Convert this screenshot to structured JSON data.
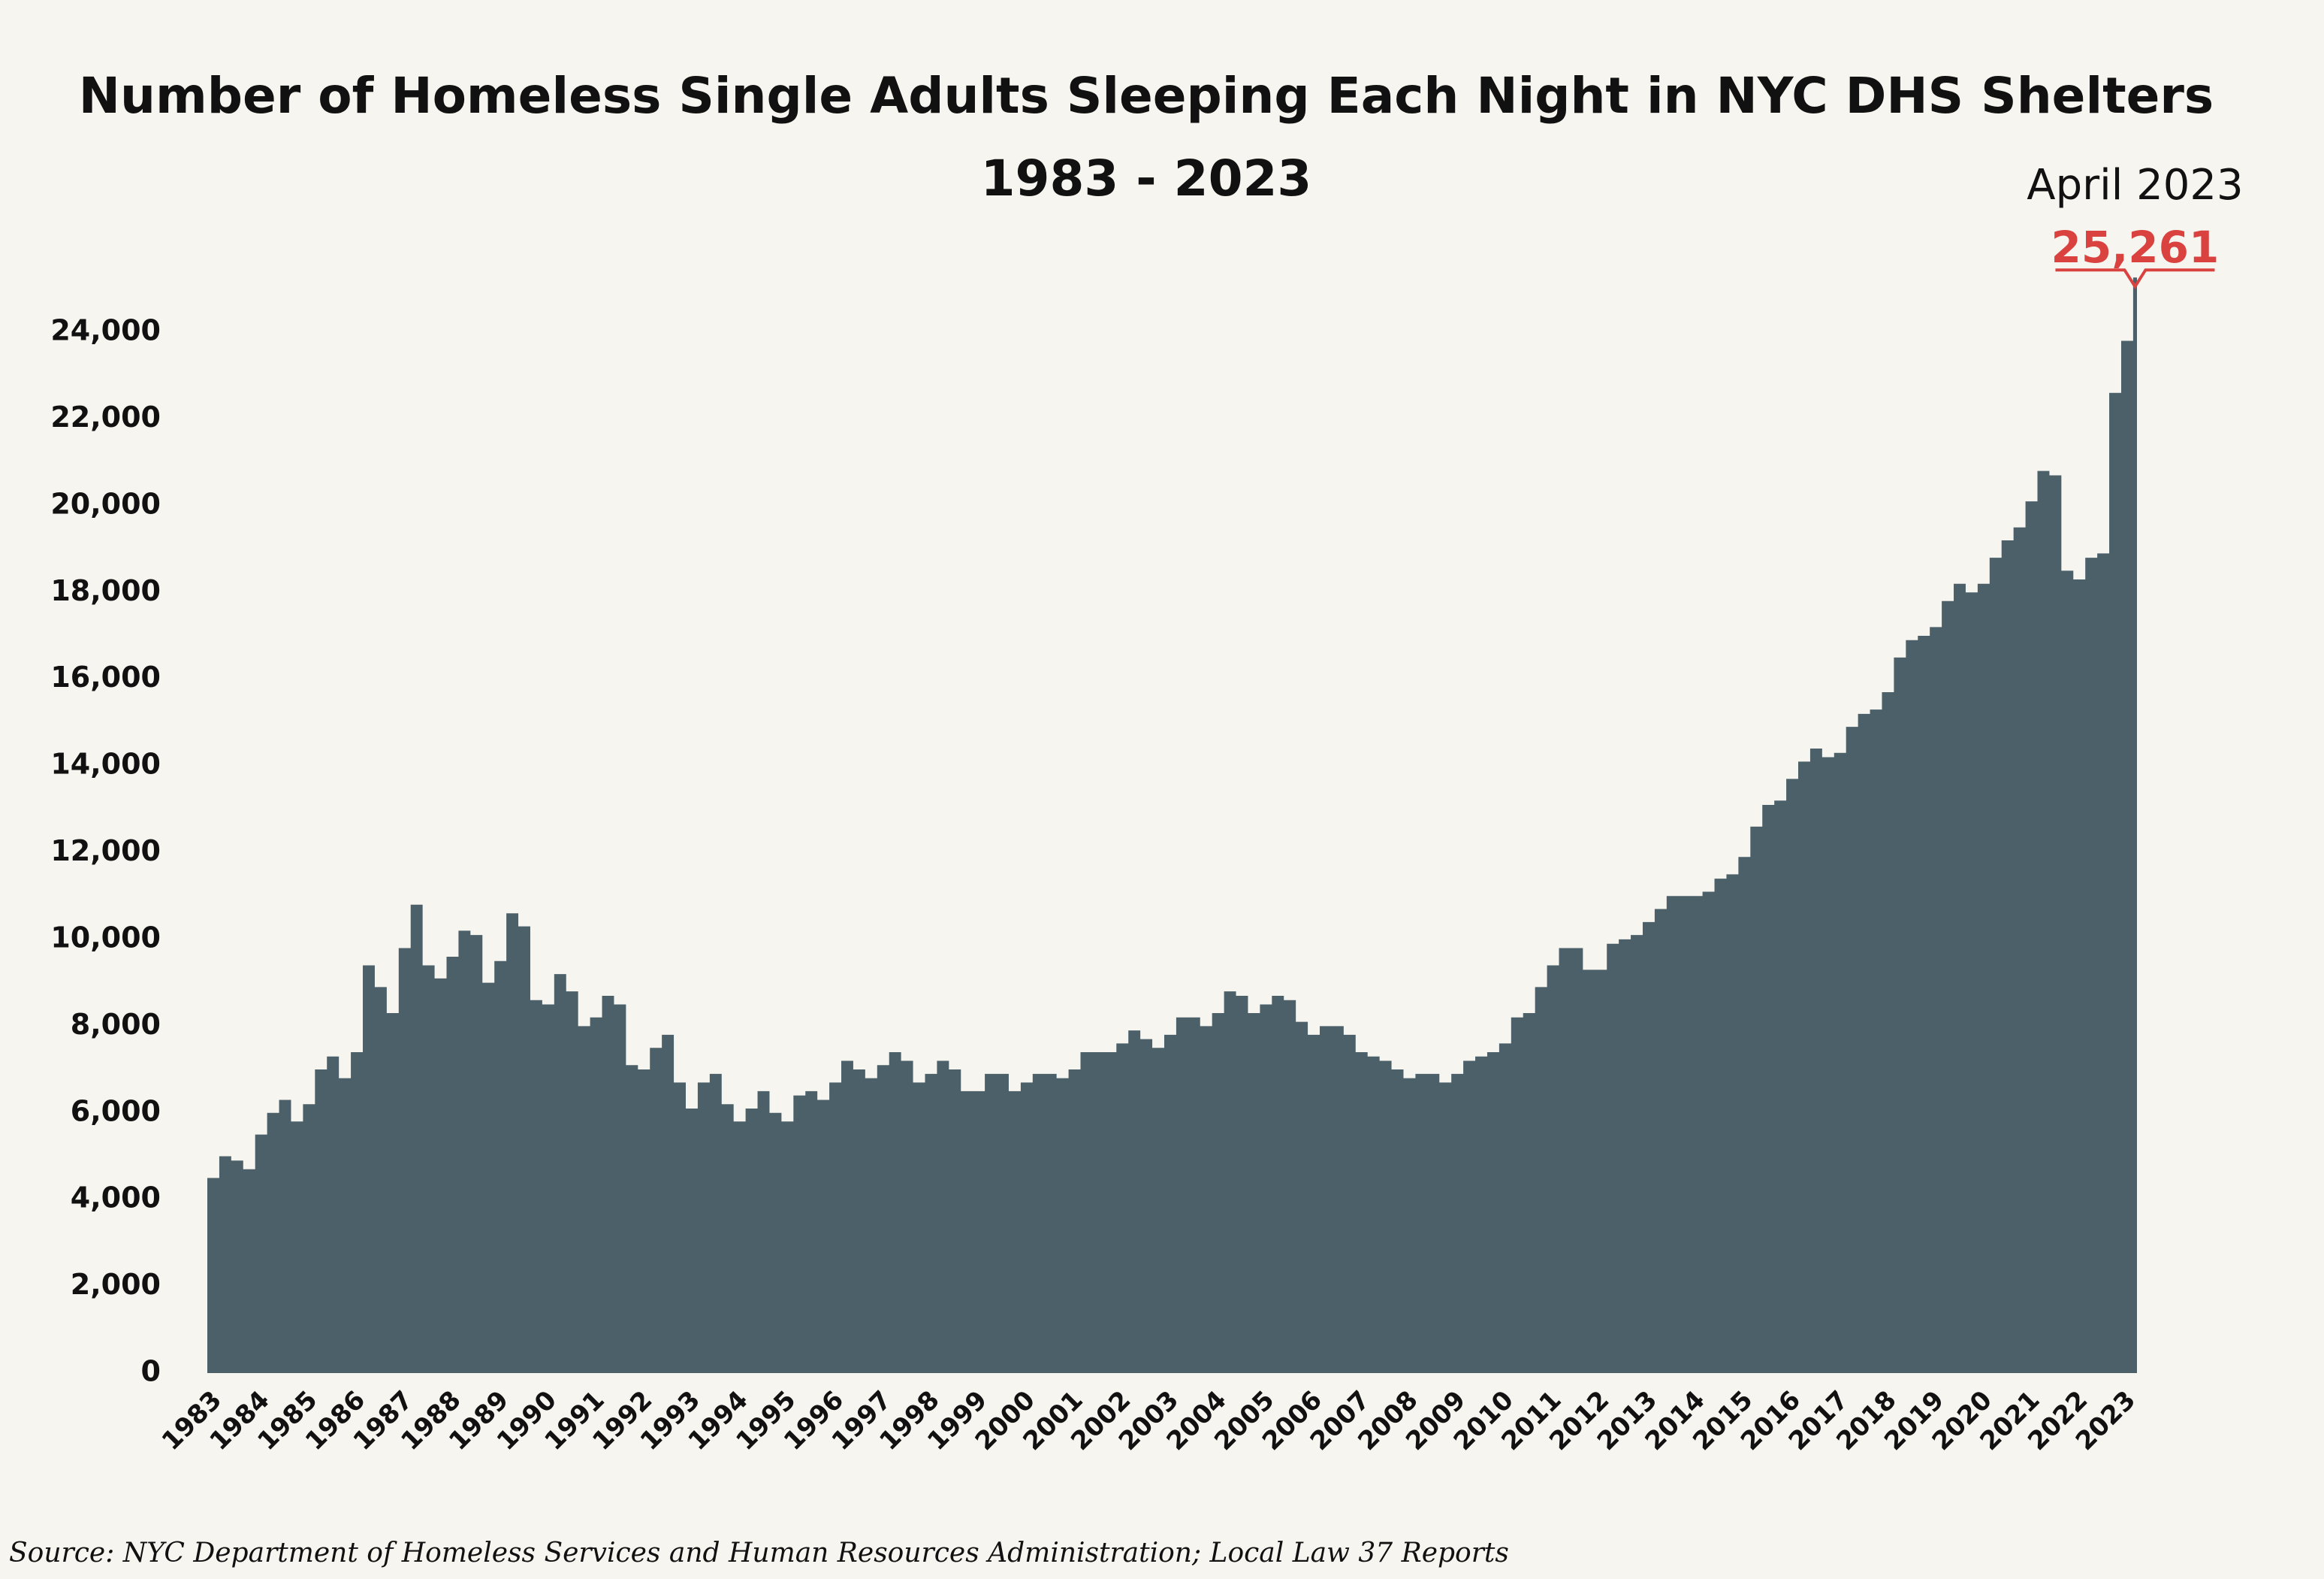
{
  "chart_data": {
    "type": "step-area",
    "title": "Number of Homeless Single Adults Sleeping Each Night in NYC DHS Shelters",
    "subtitle": "1983 - 2023",
    "source": "Source:  NYC Department of Homeless Services and Human Resources Administration; Local Law 37 Reports",
    "color": "#4b6069",
    "xlim": [
      1983,
      2023.33
    ],
    "xticks": [
      1983,
      1984,
      1985,
      1986,
      1987,
      1988,
      1989,
      1990,
      1991,
      1992,
      1993,
      1994,
      1995,
      1996,
      1997,
      1998,
      1999,
      2000,
      2001,
      2002,
      2003,
      2004,
      2005,
      2006,
      2007,
      2008,
      2009,
      2010,
      2011,
      2012,
      2013,
      2014,
      2015,
      2016,
      2017,
      2018,
      2019,
      2020,
      2021,
      2022,
      2023
    ],
    "ylim": [
      0,
      24000
    ],
    "yticks": [
      0,
      {
        "value": 2000,
        "label": "2,000"
      },
      {
        "value": 4000,
        "label": "4,000"
      },
      {
        "value": 6000,
        "label": "6,000"
      },
      {
        "value": 8000,
        "label": "8,000"
      },
      {
        "value": 10000,
        "label": "10,000"
      },
      {
        "value": 12000,
        "label": "12,000"
      },
      {
        "value": 14000,
        "label": "14,000"
      },
      {
        "value": 16000,
        "label": "16,000"
      },
      {
        "value": 18000,
        "label": "18,000"
      },
      {
        "value": 20000,
        "label": "20,000"
      },
      {
        "value": 22000,
        "label": "22,000"
      },
      {
        "value": 24000,
        "label": "24,000"
      }
    ],
    "x": [
      1983,
      1983.25,
      1983.5,
      1983.75,
      1984,
      1984.25,
      1984.5,
      1984.75,
      1985,
      1985.25,
      1985.5,
      1985.75,
      1986,
      1986.25,
      1986.5,
      1986.75,
      1987,
      1987.25,
      1987.5,
      1987.75,
      1988,
      1988.25,
      1988.5,
      1988.75,
      1989,
      1989.25,
      1989.5,
      1989.75,
      1990,
      1990.25,
      1990.5,
      1990.75,
      1991,
      1991.25,
      1991.5,
      1991.75,
      1992,
      1992.25,
      1992.5,
      1992.75,
      1993,
      1993.25,
      1993.5,
      1993.75,
      1994,
      1994.25,
      1994.5,
      1994.75,
      1995,
      1995.25,
      1995.5,
      1995.75,
      1996,
      1996.25,
      1996.5,
      1996.75,
      1997,
      1997.25,
      1997.5,
      1997.75,
      1998,
      1998.25,
      1998.5,
      1998.75,
      1999,
      1999.25,
      1999.5,
      1999.75,
      2000,
      2000.25,
      2000.5,
      2000.75,
      2001,
      2001.25,
      2001.5,
      2001.75,
      2002,
      2002.25,
      2002.5,
      2002.75,
      2003,
      2003.25,
      2003.5,
      2003.75,
      2004,
      2004.25,
      2004.5,
      2004.75,
      2005,
      2005.25,
      2005.5,
      2005.75,
      2006,
      2006.25,
      2006.5,
      2006.75,
      2007,
      2007.25,
      2007.5,
      2007.75,
      2008,
      2008.25,
      2008.5,
      2008.75,
      2009,
      2009.25,
      2009.5,
      2009.75,
      2010,
      2010.25,
      2010.5,
      2010.75,
      2011,
      2011.25,
      2011.5,
      2011.75,
      2012,
      2012.25,
      2012.5,
      2012.75,
      2013,
      2013.25,
      2013.5,
      2013.75,
      2014,
      2014.25,
      2014.5,
      2014.75,
      2015,
      2015.25,
      2015.5,
      2015.75,
      2016,
      2016.25,
      2016.5,
      2016.75,
      2017,
      2017.25,
      2017.5,
      2017.75,
      2018,
      2018.25,
      2018.5,
      2018.75,
      2019,
      2019.25,
      2019.5,
      2019.75,
      2020,
      2020.25,
      2020.5,
      2020.75,
      2021,
      2021.25,
      2021.5,
      2021.75,
      2022,
      2022.25,
      2022.5,
      2022.75,
      2023,
      2023.25
    ],
    "values": [
      4500,
      5000,
      4900,
      4700,
      5500,
      6000,
      6300,
      5800,
      6200,
      7000,
      7300,
      6800,
      7400,
      9400,
      8900,
      8300,
      9800,
      10800,
      9400,
      9100,
      9600,
      10200,
      10100,
      9000,
      9500,
      10600,
      10300,
      8600,
      8500,
      9200,
      8800,
      8000,
      8200,
      8700,
      8500,
      7100,
      7000,
      7500,
      7800,
      6700,
      6100,
      6700,
      6900,
      6200,
      5800,
      6100,
      6500,
      6000,
      5800,
      6400,
      6500,
      6300,
      6700,
      7200,
      7000,
      6800,
      7100,
      7400,
      7200,
      6700,
      6900,
      7200,
      7000,
      6500,
      6500,
      6900,
      6900,
      6500,
      6700,
      6900,
      6900,
      6800,
      7000,
      7400,
      7400,
      7400,
      7600,
      7900,
      7700,
      7500,
      7800,
      8200,
      8200,
      8000,
      8300,
      8800,
      8700,
      8300,
      8500,
      8700,
      8600,
      8100,
      7800,
      8000,
      8000,
      7800,
      7400,
      7300,
      7200,
      7000,
      6800,
      6900,
      6900,
      6700,
      6900,
      7200,
      7300,
      7400,
      7600,
      8200,
      8300,
      8900,
      9400,
      9800,
      9800,
      9300,
      9300,
      9900,
      10000,
      10100,
      10400,
      10700,
      11000,
      11000,
      11000,
      11100,
      11400,
      11500,
      11900,
      12600,
      13100,
      13200,
      13700,
      14100,
      14400,
      14200,
      14300,
      14900,
      15200,
      15300,
      15700,
      16500,
      16900,
      17000,
      17200,
      17800,
      18200,
      18000,
      18200,
      18800,
      19200,
      19500,
      20100,
      20800,
      20700,
      18500,
      18300,
      18800,
      18900,
      22600,
      23800,
      25261
    ],
    "annotation": {
      "text": "April 2023",
      "label": "25,261",
      "color": "#d9423f"
    }
  }
}
